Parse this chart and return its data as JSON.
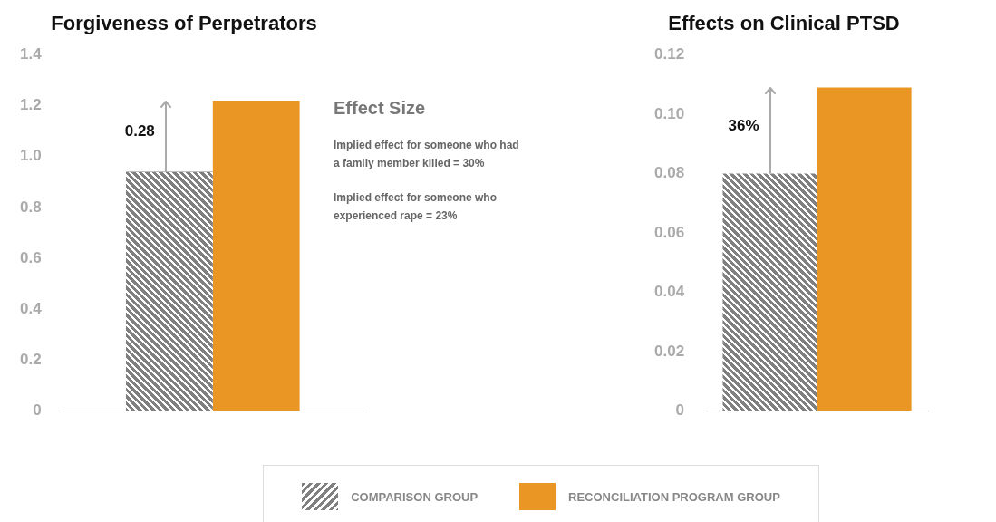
{
  "chart_data": [
    {
      "type": "bar",
      "title": "Forgiveness of Perpetrators",
      "categories": [
        null
      ],
      "series": [
        {
          "name": "COMPARISON GROUP",
          "color": "#808080",
          "values": [
            0.94
          ]
        },
        {
          "name": "RECONCILIATION PROGRAM GROUP",
          "color": "#e99624",
          "values": [
            1.22
          ]
        }
      ],
      "ylim": [
        0,
        1.4
      ],
      "yticks": [
        0,
        0.2,
        0.4,
        0.6,
        0.8,
        {
          "value": 1,
          "label": "1.0"
        },
        1.2,
        1.4
      ],
      "annotations": [
        "0.28",
        "Effect Size",
        "Implied effect for someone who had a family member killed = 30%",
        "Implied effect for someone who experienced rape = 23%"
      ],
      "legend": "bottom",
      "grid": false
    },
    {
      "type": "bar",
      "title": "Effects on Clinical PTSD",
      "categories": [
        null
      ],
      "series": [
        {
          "color": "#808080",
          "values": [
            0.08
          ]
        },
        {
          "color": "#e99624",
          "values": [
            0.109
          ]
        }
      ],
      "ylim": [
        0,
        0.12
      ],
      "yticks": [
        0,
        0.02,
        0.04,
        0.06,
        {
          "value": 0.08,
          "label": "0.08"
        },
        {
          "value": 0.1,
          "label": "0.10"
        },
        0.12
      ],
      "annotations": [
        "36%"
      ],
      "grid": false
    }
  ]
}
